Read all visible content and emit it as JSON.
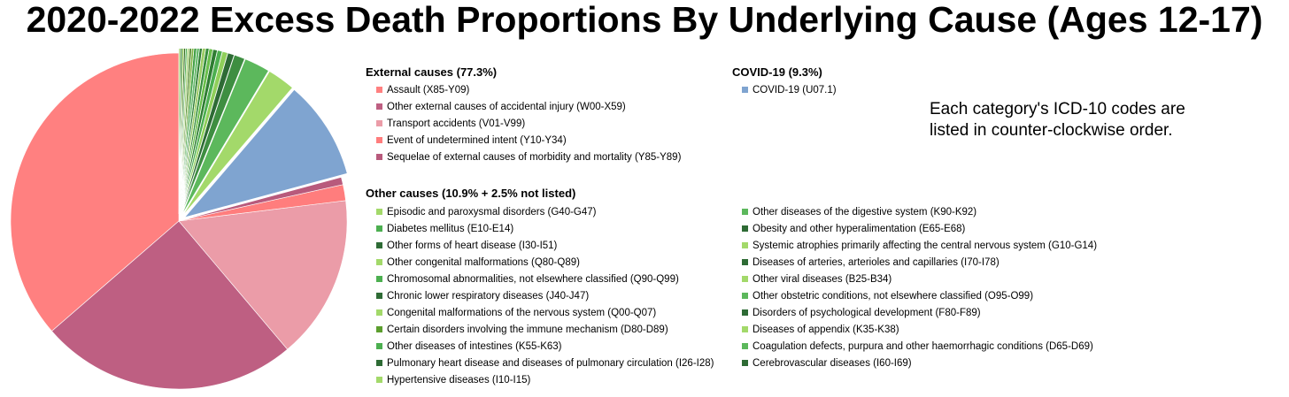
{
  "chart_data": {
    "type": "pie",
    "title": "2020-2022 Excess Death Proportions By Underlying Cause (Ages 12-17)",
    "note": "Each category's ICD-10 codes are listed in counter-clockwise order.",
    "groups": [
      {
        "title": "External causes (77.3%)",
        "exploded": false,
        "slices": [
          {
            "name": "Assault (X85-Y09)",
            "value": 35.5,
            "color": "#ff8080"
          },
          {
            "name": "Other external causes of accidental injury (W00-X59)",
            "value": 24.2,
            "color": "#be5f82"
          },
          {
            "name": "Transport accidents (V01-V99)",
            "value": 15.4,
            "color": "#eb9ca8"
          },
          {
            "name": "Event of undetermined intent (Y10-Y34)",
            "value": 1.5,
            "color": "#ff7d7d"
          },
          {
            "name": "Sequelae of external causes of morbidity and mortality (Y85-Y89)",
            "value": 0.7,
            "color": "#b85a7c"
          }
        ]
      },
      {
        "title": "COVID-19 (9.3%)",
        "exploded": true,
        "slices": [
          {
            "name": "COVID-19 (U07.1)",
            "value": 9.3,
            "color": "#7fa4d0"
          }
        ]
      },
      {
        "title": "Other causes (10.9% + 2.5% not listed)",
        "exploded": true,
        "slices": [
          {
            "name": "Episodic and paroxysmal disorders (G40-G47)",
            "value": 2.6,
            "color": "#a3d96a"
          },
          {
            "name": "Other diseases of the digestive system (K90-K92)",
            "value": 2.4,
            "color": "#5cb85c"
          },
          {
            "name": "Diabetes mellitus (E10-E14)",
            "value": 1.0,
            "color": "#3e8e41"
          },
          {
            "name": "Obesity and other hyperalimentation (E65-E68)",
            "value": 0.6,
            "color": "#2e6b35"
          },
          {
            "name": "Other forms of heart disease (I30-I51)",
            "value": 0.5,
            "color": "#8fcf5a"
          },
          {
            "name": "Systemic atrophies primarily affecting the central nervous system (G10-G14)",
            "value": 0.45,
            "color": "#4caf50"
          },
          {
            "name": "Other congenital malformations (Q80-Q89)",
            "value": 0.4,
            "color": "#2f7d32"
          },
          {
            "name": "Diseases of arteries, arterioles and capillaries (I70-I78)",
            "value": 0.35,
            "color": "#6abf4b"
          },
          {
            "name": "Chromosomal abnormalities, not elsewhere classified (Q90-Q99)",
            "value": 0.3,
            "color": "#388e3c"
          },
          {
            "name": "Other viral diseases (B25-B34)",
            "value": 0.3,
            "color": "#9ccc65"
          },
          {
            "name": "Chronic lower respiratory diseases (J40-J47)",
            "value": 0.25,
            "color": "#2e7d32"
          },
          {
            "name": "Other obstetric conditions, not elsewhere classified (O95-O99)",
            "value": 0.25,
            "color": "#66bb6a"
          },
          {
            "name": "Congenital malformations of the nervous system (Q00-Q07)",
            "value": 0.25,
            "color": "#43a047"
          },
          {
            "name": "Disorders of psychological development (F80-F89)",
            "value": 0.2,
            "color": "#7cb342"
          },
          {
            "name": "Certain disorders involving the immune mechanism (D80-D89)",
            "value": 0.2,
            "color": "#558b2f"
          },
          {
            "name": "Diseases of appendix (K35-K38)",
            "value": 0.2,
            "color": "#aed581"
          },
          {
            "name": "Other diseases of intestines (K55-K63)",
            "value": 0.15,
            "color": "#4caf50"
          },
          {
            "name": "Coagulation defects, purpura and other haemorrhagic conditions (D65-D69)",
            "value": 0.15,
            "color": "#33691e"
          },
          {
            "name": "Pulmonary heart disease and diseases of pulmonary circulation (I26-I28)",
            "value": 0.15,
            "color": "#8bc34a"
          },
          {
            "name": "Cerebrovascular diseases (I60-I69)",
            "value": 0.15,
            "color": "#2e7d32"
          },
          {
            "name": "Hypertensive diseases (I10-I15)",
            "value": 0.15,
            "color": "#9ccc65"
          }
        ]
      }
    ]
  },
  "legend": {
    "external": {
      "title": "External causes (77.3%)",
      "items": [
        {
          "label": "Assault (X85-Y09)",
          "color": "#ff8080"
        },
        {
          "label": "Other external causes of accidental injury (W00-X59)",
          "color": "#be5f82"
        },
        {
          "label": "Transport accidents (V01-V99)",
          "color": "#eb9ca8"
        },
        {
          "label": "Event of undetermined intent (Y10-Y34)",
          "color": "#ff7d7d"
        },
        {
          "label": "Sequelae of external causes of morbidity and mortality (Y85-Y89)",
          "color": "#b85a7c"
        }
      ]
    },
    "covid": {
      "title": "COVID-19 (9.3%)",
      "items": [
        {
          "label": "COVID-19 (U07.1)",
          "color": "#7fa4d0"
        }
      ]
    },
    "other": {
      "title": "Other causes (10.9% + 2.5% not listed)",
      "col1": [
        {
          "label": "Episodic and paroxysmal disorders (G40-G47)",
          "color": "#a3d96a"
        },
        {
          "label": "Diabetes mellitus (E10-E14)",
          "color": "#4caf50"
        },
        {
          "label": "Other forms of heart disease (I30-I51)",
          "color": "#2e6b35"
        },
        {
          "label": "Other congenital malformations (Q80-Q89)",
          "color": "#a3d96a"
        },
        {
          "label": "Chromosomal abnormalities, not elsewhere classified (Q90-Q99)",
          "color": "#4caf50"
        },
        {
          "label": "Chronic lower respiratory diseases (J40-J47)",
          "color": "#2e6b35"
        },
        {
          "label": "Congenital malformations of the nervous system (Q00-Q07)",
          "color": "#a3d96a"
        },
        {
          "label": "Certain disorders involving the immune mechanism (D80-D89)",
          "color": "#5c9e2e"
        },
        {
          "label": "Other diseases of intestines (K55-K63)",
          "color": "#4caf50"
        },
        {
          "label": "Pulmonary heart disease and diseases of pulmonary circulation (I26-I28)",
          "color": "#2e6b35"
        },
        {
          "label": "Hypertensive diseases (I10-I15)",
          "color": "#a3d96a"
        }
      ],
      "col2": [
        {
          "label": "Other diseases of the digestive system (K90-K92)",
          "color": "#5cb85c"
        },
        {
          "label": "Obesity and other hyperalimentation (E65-E68)",
          "color": "#2e6b35"
        },
        {
          "label": "Systemic atrophies primarily affecting the central nervous system (G10-G14)",
          "color": "#a3d96a"
        },
        {
          "label": "Diseases of arteries, arterioles and capillaries (I70-I78)",
          "color": "#2e6b35"
        },
        {
          "label": "Other viral diseases (B25-B34)",
          "color": "#a3d96a"
        },
        {
          "label": "Other obstetric conditions, not elsewhere classified (O95-O99)",
          "color": "#5cb85c"
        },
        {
          "label": "Disorders of psychological development (F80-F89)",
          "color": "#2e6b35"
        },
        {
          "label": "Diseases of appendix (K35-K38)",
          "color": "#a3d96a"
        },
        {
          "label": "Coagulation defects, purpura and other haemorrhagic conditions (D65-D69)",
          "color": "#5cb85c"
        },
        {
          "label": "Cerebrovascular diseases (I60-I69)",
          "color": "#2e6b35"
        }
      ]
    }
  }
}
